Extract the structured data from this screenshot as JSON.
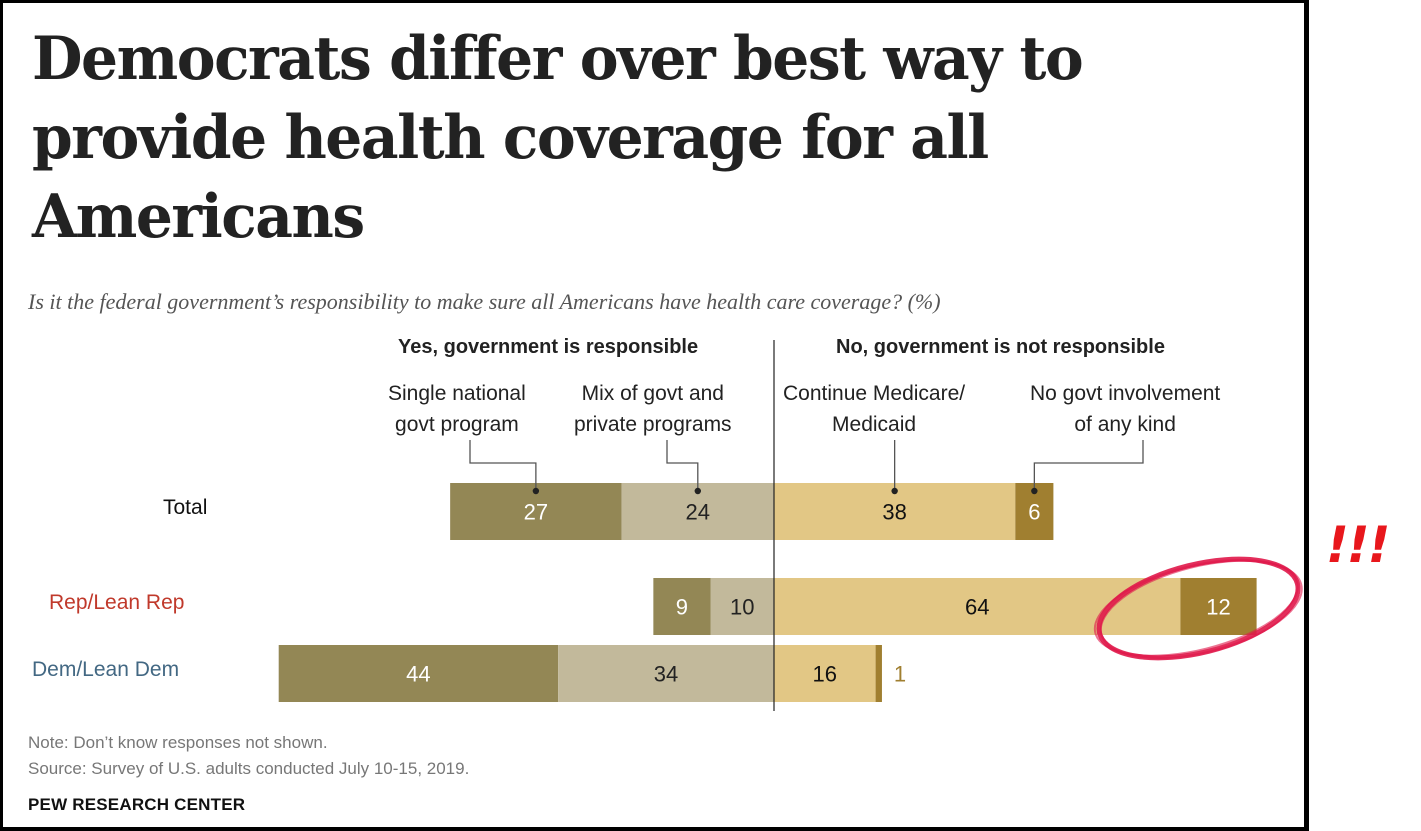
{
  "title": "Democrats differ over best way to provide health coverage for all Americans",
  "subtitle": "Is it the federal government’s responsibility to make sure all Americans have health care coverage? (%)",
  "group_headers": {
    "yes": "Yes, government is responsible",
    "no": "No, government is not responsible"
  },
  "colors": {
    "single": "#938755",
    "mix": "#c2b99b",
    "medicare": "#e2c785",
    "no_govt": "#a07f30",
    "rep_label": "#c0392b",
    "dem_label": "#436883",
    "annotation": "#e0184a",
    "exclaim": "#e8171c"
  },
  "chart_data": {
    "type": "bar",
    "orientation": "horizontal",
    "stacked": "diverging",
    "title": "Democrats differ over best way to provide health coverage for all Americans",
    "subtitle": "Is it the federal government’s responsibility to make sure all Americans have health care coverage? (%)",
    "unit": "%",
    "categories": [
      "Total",
      "Rep/Lean Rep",
      "Dem/Lean Dem"
    ],
    "series": [
      {
        "name": "Single national govt program",
        "side": "yes",
        "values": [
          27,
          9,
          44
        ]
      },
      {
        "name": "Mix of govt and private programs",
        "side": "yes",
        "values": [
          24,
          10,
          34
        ]
      },
      {
        "name": "Continue Medicare/ Medicaid",
        "side": "no",
        "values": [
          38,
          64,
          16
        ]
      },
      {
        "name": "No govt involvement of any kind",
        "side": "no",
        "values": [
          6,
          12,
          1
        ]
      }
    ],
    "series_labels_lines": [
      [
        "Single national",
        "govt program"
      ],
      [
        "Mix of govt and",
        "private programs"
      ],
      [
        "Continue Medicare/",
        "Medicaid"
      ],
      [
        "No govt involvement",
        "of any kind"
      ]
    ],
    "grid": false,
    "legend": "top (callout labels above Total bar)",
    "annotations": [
      {
        "type": "hand-drawn circle",
        "target": "Rep/Lean Rep – No govt involvement of any kind (12)"
      },
      {
        "type": "text",
        "text": "!!!"
      }
    ]
  },
  "annotation_text": "!!!",
  "footer": {
    "note": "Note: Don’t know responses not shown.",
    "source": "Source: Survey of U.S. adults conducted July 10-15, 2019.",
    "brand": "PEW RESEARCH CENTER"
  }
}
